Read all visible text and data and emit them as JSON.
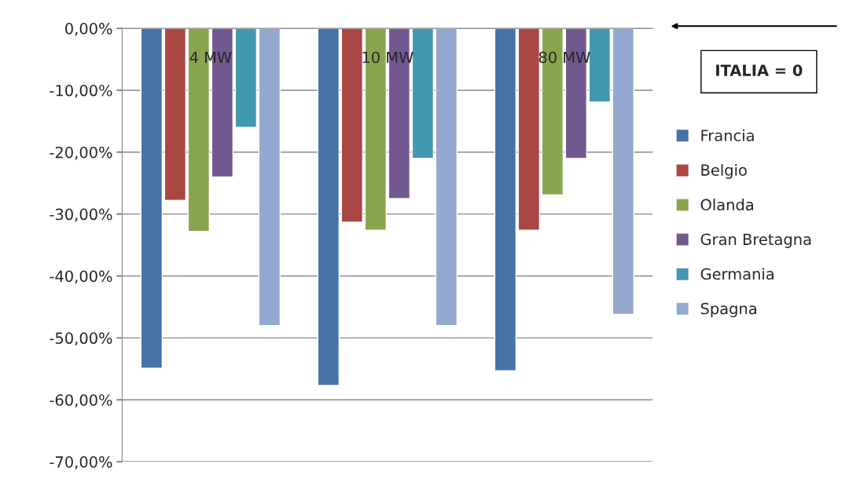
{
  "chart_data": {
    "type": "bar",
    "categories": [
      "4 MW",
      "10 MW",
      "80 MW"
    ],
    "series": [
      {
        "name": "Francia",
        "color": "#4572a7",
        "values": [
          -54.9,
          -57.7,
          -55.3
        ]
      },
      {
        "name": "Belgio",
        "color": "#aa4643",
        "values": [
          -27.8,
          -31.3,
          -32.6
        ]
      },
      {
        "name": "Olanda",
        "color": "#89a54e",
        "values": [
          -32.8,
          -32.6,
          -26.9
        ]
      },
      {
        "name": "Gran Bretagna",
        "color": "#71588f",
        "values": [
          -24.0,
          -27.5,
          -21.0
        ]
      },
      {
        "name": "Germania",
        "color": "#4198af",
        "values": [
          -16.0,
          -21.0,
          -11.9
        ]
      },
      {
        "name": "Spagna",
        "color": "#93a9cf",
        "values": [
          -48.0,
          -48.0,
          -46.2
        ]
      }
    ],
    "ylim": [
      -70,
      0
    ],
    "yticks": [
      {
        "value": 0,
        "label": "0,00%"
      },
      {
        "value": -10,
        "label": "-10,00%"
      },
      {
        "value": -20,
        "label": "-20,00%"
      },
      {
        "value": -30,
        "label": "-30,00%"
      },
      {
        "value": -40,
        "label": "-40,00%"
      },
      {
        "value": -50,
        "label": "-50,00%"
      },
      {
        "value": -60,
        "label": "-60,00%"
      },
      {
        "value": -70,
        "label": "-70,00%"
      }
    ],
    "grid": "y",
    "legend": "right",
    "annotations": [
      "ITALIA = 0"
    ]
  }
}
